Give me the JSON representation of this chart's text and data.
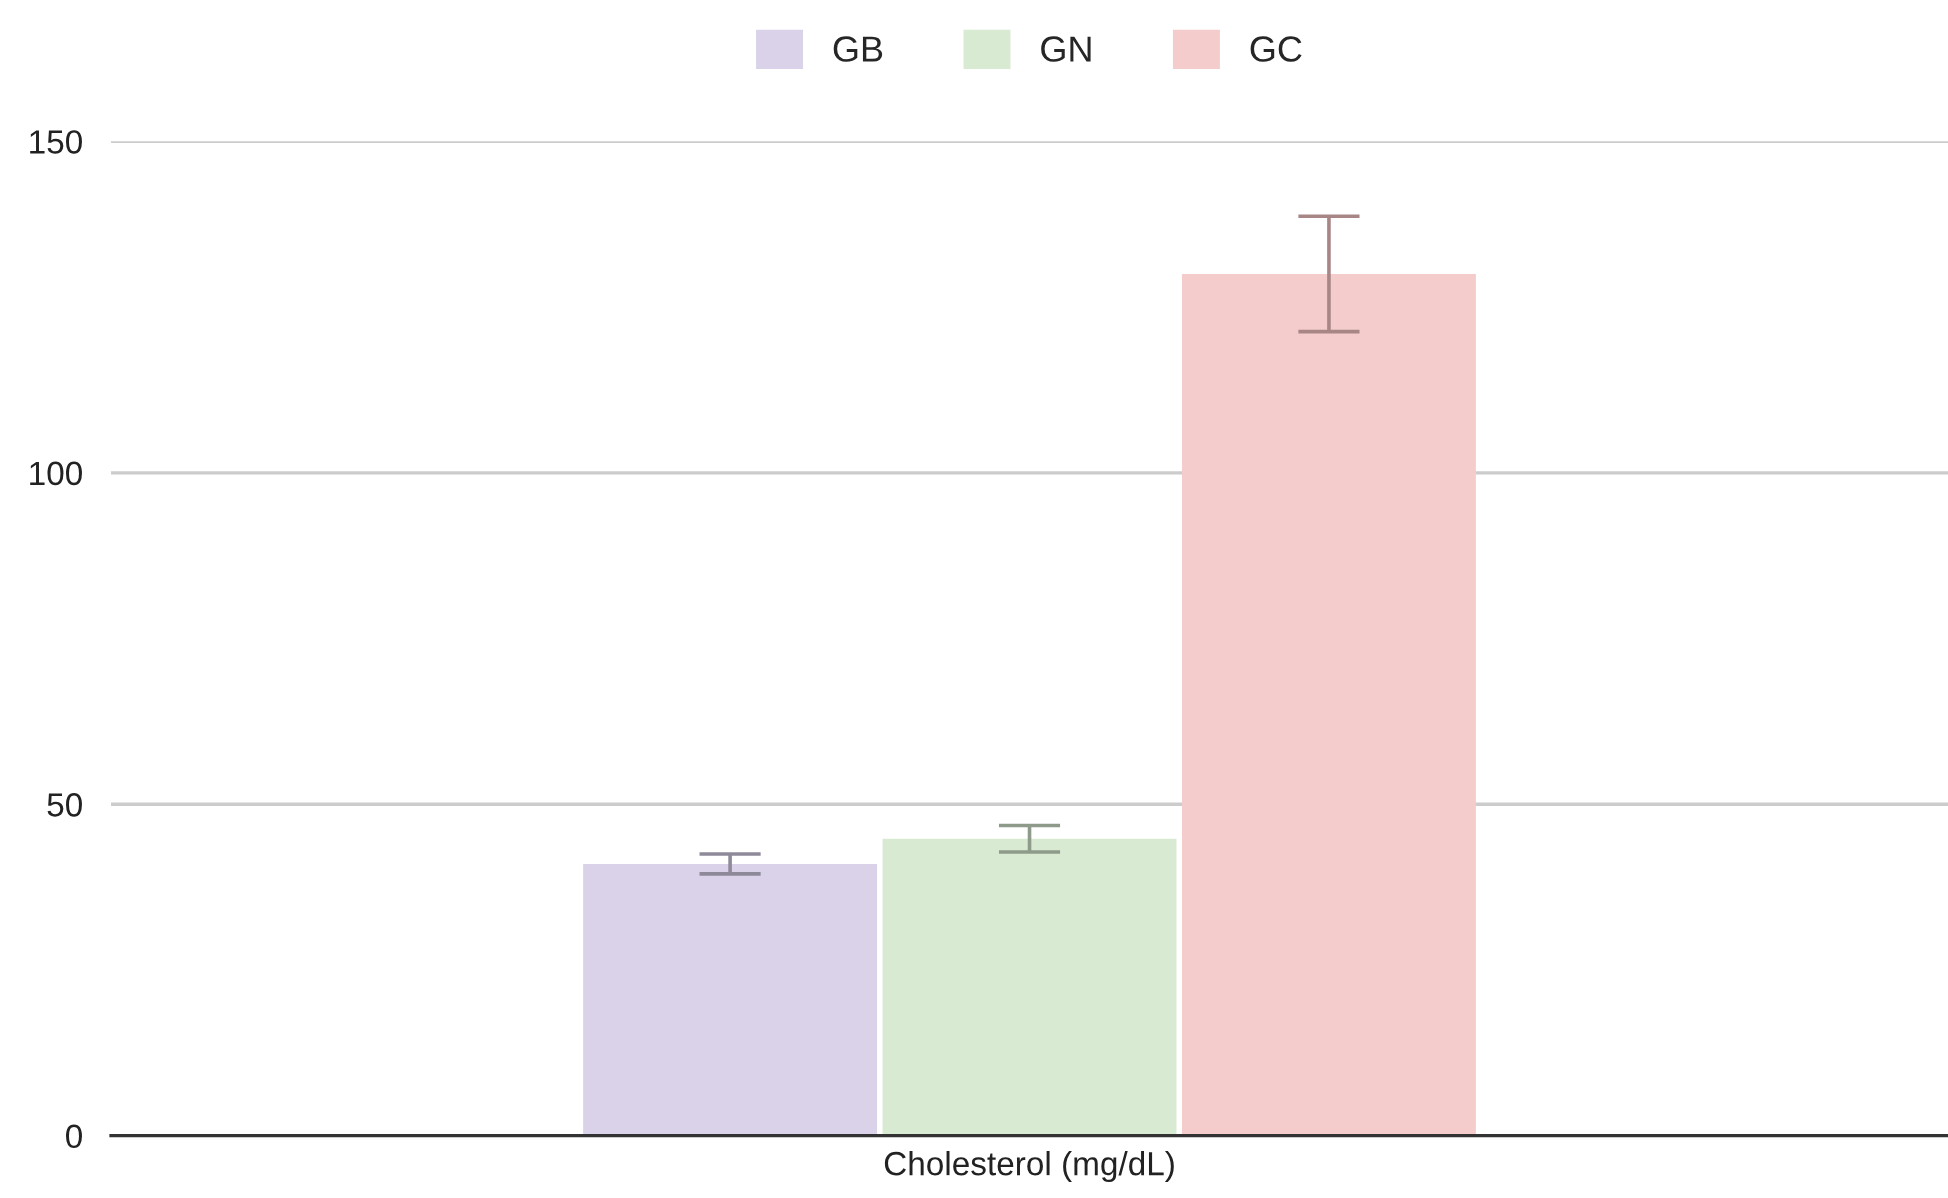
{
  "chart_data": {
    "type": "bar",
    "xlabel": "Cholesterol (mg/dL)",
    "categories": [
      null
    ],
    "series": [
      {
        "name": "GB",
        "color": "#d9d2e9",
        "values": [
          41
        ],
        "errors": [
          1.5
        ]
      },
      {
        "name": "GN",
        "color": "#d9ead3",
        "values": [
          44.8
        ],
        "errors": [
          2
        ]
      },
      {
        "name": "GC",
        "color": "#f4cccc",
        "values": [
          130
        ],
        "errors": [
          8.7
        ]
      }
    ],
    "ylim": [
      0,
      150
    ],
    "yticks": [
      0,
      50,
      100,
      150
    ],
    "grid": "y",
    "legend": "top"
  }
}
